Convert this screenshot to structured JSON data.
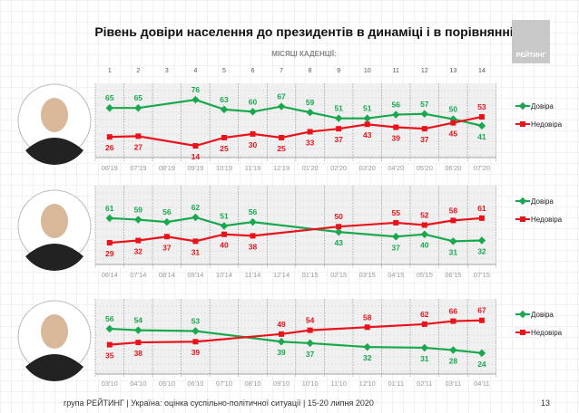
{
  "title": "Рівень довіри населення до президентів в динаміці і в порівнянні",
  "logo_text": "РЕЙТИНГ",
  "subtitle": "МІСЯЦІ КАДЕНЦІЇ:",
  "months": [
    "1",
    "2",
    "3",
    "4",
    "5",
    "6",
    "7",
    "8",
    "9",
    "10",
    "11",
    "12",
    "13",
    "14"
  ],
  "footer": "група РЕЙТИНГ |  Україна: оцінка суспільно-політичної  ситуації  | 15-20 липня  2020",
  "page_number": "13",
  "colors": {
    "trust": "#1aa84f",
    "distrust": "#e8131b"
  },
  "chart_data": [
    {
      "type": "line",
      "categories": [
        "06'19",
        "07'19",
        "08'19",
        "09'19",
        "10'19",
        "11'19",
        "12'19",
        "01'20",
        "02'20",
        "03'20",
        "04'20",
        "05'20",
        "06'20",
        "07'20"
      ],
      "series": [
        {
          "name": "Довіра",
          "values": [
            65,
            65,
            null,
            76,
            63,
            60,
            67,
            59,
            51,
            51,
            56,
            57,
            50,
            41
          ]
        },
        {
          "name": "Недовіра",
          "values": [
            26,
            27,
            null,
            14,
            25,
            30,
            25,
            33,
            37,
            43,
            39,
            37,
            45,
            53
          ]
        }
      ],
      "legend": "right",
      "grid": true
    },
    {
      "type": "line",
      "categories": [
        "06'14",
        "07'14",
        "08'14",
        "09'14",
        "10'14",
        "11'14",
        "12'14",
        "01'15",
        "02'15",
        "03'15",
        "04'15",
        "05'15",
        "06'15",
        "07'15"
      ],
      "series": [
        {
          "name": "Довіра",
          "values": [
            61,
            59,
            56,
            62,
            51,
            56,
            null,
            null,
            43,
            null,
            37,
            40,
            31,
            32
          ]
        },
        {
          "name": "Недовіра",
          "values": [
            29,
            32,
            37,
            31,
            40,
            38,
            null,
            null,
            50,
            null,
            55,
            52,
            58,
            61
          ]
        }
      ],
      "legend": "right",
      "grid": true
    },
    {
      "type": "line",
      "categories": [
        "03'10",
        "04'10",
        "05'10",
        "06'10",
        "07'10",
        "08'10",
        "09'10",
        "10'10",
        "11'10",
        "12'10",
        "01'11",
        "02'11",
        "03'11",
        "04'11"
      ],
      "series": [
        {
          "name": "Довіра",
          "values": [
            56,
            54,
            null,
            53,
            null,
            null,
            39,
            37,
            null,
            32,
            null,
            31,
            28,
            24
          ]
        },
        {
          "name": "Недовіра",
          "values": [
            35,
            38,
            null,
            39,
            null,
            null,
            49,
            54,
            null,
            58,
            null,
            62,
            66,
            67
          ]
        }
      ],
      "legend": "right",
      "grid": true
    }
  ]
}
